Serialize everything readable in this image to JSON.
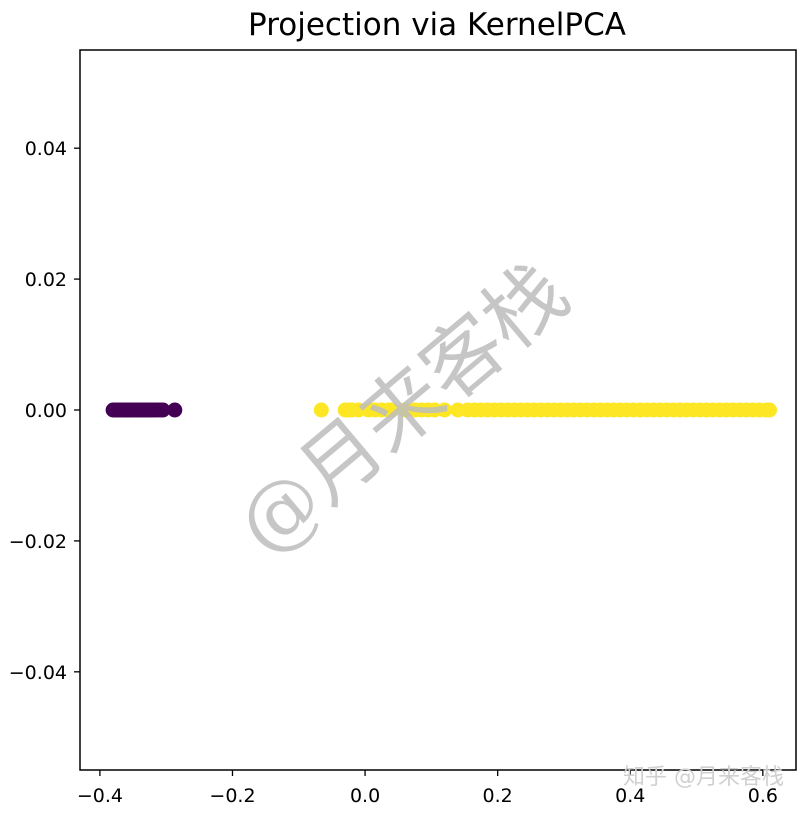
{
  "chart_data": {
    "type": "scatter",
    "title": "Projection via KernelPCA",
    "xlabel": "",
    "ylabel": "",
    "xlim": [
      -0.43,
      0.65
    ],
    "ylim": [
      -0.055,
      0.055
    ],
    "xticks": [
      -0.4,
      -0.2,
      0.0,
      0.2,
      0.4,
      0.6
    ],
    "xtick_labels": [
      "−0.4",
      "−0.2",
      "0.0",
      "0.2",
      "0.4",
      "0.6"
    ],
    "yticks": [
      -0.04,
      -0.02,
      0.0,
      0.02,
      0.04
    ],
    "ytick_labels": [
      "−0.04",
      "−0.02",
      "0.00",
      "0.02",
      "0.04"
    ],
    "grid": false,
    "legend": null,
    "series": [
      {
        "color": "#440154",
        "points": [
          [
            -0.38,
            0
          ],
          [
            -0.377,
            0
          ],
          [
            -0.374,
            0
          ],
          [
            -0.371,
            0
          ],
          [
            -0.368,
            0
          ],
          [
            -0.365,
            0
          ],
          [
            -0.362,
            0
          ],
          [
            -0.359,
            0
          ],
          [
            -0.356,
            0
          ],
          [
            -0.353,
            0
          ],
          [
            -0.35,
            0
          ],
          [
            -0.347,
            0
          ],
          [
            -0.344,
            0
          ],
          [
            -0.341,
            0
          ],
          [
            -0.338,
            0
          ],
          [
            -0.335,
            0
          ],
          [
            -0.332,
            0
          ],
          [
            -0.329,
            0
          ],
          [
            -0.326,
            0
          ],
          [
            -0.323,
            0
          ],
          [
            -0.32,
            0
          ],
          [
            -0.317,
            0
          ],
          [
            -0.313,
            0
          ],
          [
            -0.309,
            0
          ],
          [
            -0.305,
            0
          ],
          [
            -0.287,
            0
          ]
        ]
      },
      {
        "color": "#fde725",
        "points": [
          [
            -0.066,
            0
          ],
          [
            -0.03,
            0
          ],
          [
            -0.025,
            0
          ],
          [
            -0.02,
            0
          ],
          [
            -0.01,
            0
          ],
          [
            0.005,
            0
          ],
          [
            0.015,
            0
          ],
          [
            0.025,
            0
          ],
          [
            0.035,
            0
          ],
          [
            0.04,
            0
          ],
          [
            0.06,
            0
          ],
          [
            0.075,
            0
          ],
          [
            0.085,
            0
          ],
          [
            0.095,
            0
          ],
          [
            0.105,
            0
          ],
          [
            0.12,
            0
          ],
          [
            0.14,
            0
          ],
          [
            0.155,
            0
          ],
          [
            0.165,
            0
          ],
          [
            0.175,
            0
          ],
          [
            0.185,
            0
          ],
          [
            0.195,
            0
          ],
          [
            0.205,
            0
          ],
          [
            0.215,
            0
          ],
          [
            0.225,
            0
          ],
          [
            0.235,
            0
          ],
          [
            0.245,
            0
          ],
          [
            0.255,
            0
          ],
          [
            0.265,
            0
          ],
          [
            0.275,
            0
          ],
          [
            0.285,
            0
          ],
          [
            0.295,
            0
          ],
          [
            0.305,
            0
          ],
          [
            0.315,
            0
          ],
          [
            0.325,
            0
          ],
          [
            0.335,
            0
          ],
          [
            0.345,
            0
          ],
          [
            0.355,
            0
          ],
          [
            0.365,
            0
          ],
          [
            0.375,
            0
          ],
          [
            0.385,
            0
          ],
          [
            0.395,
            0
          ],
          [
            0.405,
            0
          ],
          [
            0.415,
            0
          ],
          [
            0.425,
            0
          ],
          [
            0.435,
            0
          ],
          [
            0.445,
            0
          ],
          [
            0.455,
            0
          ],
          [
            0.465,
            0
          ],
          [
            0.475,
            0
          ],
          [
            0.485,
            0
          ],
          [
            0.495,
            0
          ],
          [
            0.505,
            0
          ],
          [
            0.515,
            0
          ],
          [
            0.525,
            0
          ],
          [
            0.535,
            0
          ],
          [
            0.545,
            0
          ],
          [
            0.555,
            0
          ],
          [
            0.565,
            0
          ],
          [
            0.575,
            0
          ],
          [
            0.585,
            0
          ],
          [
            0.595,
            0
          ],
          [
            0.605,
            0
          ],
          [
            0.61,
            0
          ]
        ]
      }
    ]
  },
  "watermark": {
    "center_text": "@月来客栈",
    "corner_text": "知乎 @月来客栈"
  }
}
